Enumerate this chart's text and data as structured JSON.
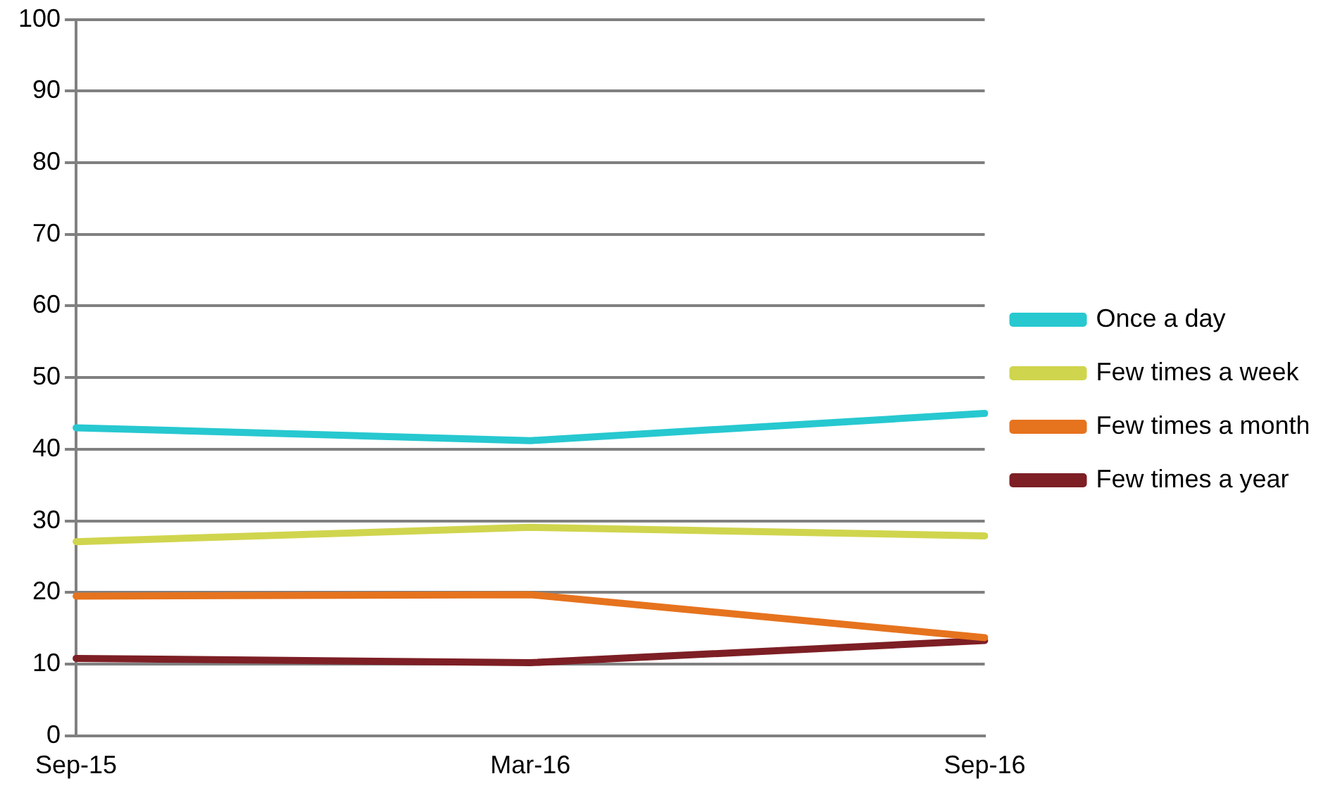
{
  "chart_data": {
    "type": "line",
    "categories": [
      "Sep-15",
      "Mar-16",
      "Sep-16"
    ],
    "series": [
      {
        "name": "Once a day",
        "color": "#27c8d0",
        "values": [
          43,
          41.2,
          45
        ]
      },
      {
        "name": "Few times a week",
        "color": "#d0d54e",
        "values": [
          27.1,
          29.1,
          27.9
        ]
      },
      {
        "name": "Few times a month",
        "color": "#e6731e",
        "values": [
          19.5,
          19.7,
          13.7
        ]
      },
      {
        "name": "Few times a year",
        "color": "#7d1f25",
        "values": [
          10.8,
          10.2,
          13.3
        ]
      }
    ],
    "ylim": [
      0,
      100
    ],
    "yticks": [
      0,
      10,
      20,
      30,
      40,
      50,
      60,
      70,
      80,
      90,
      100
    ],
    "grid": "y",
    "legend": "right",
    "marker": "none",
    "line_style": "solid"
  }
}
